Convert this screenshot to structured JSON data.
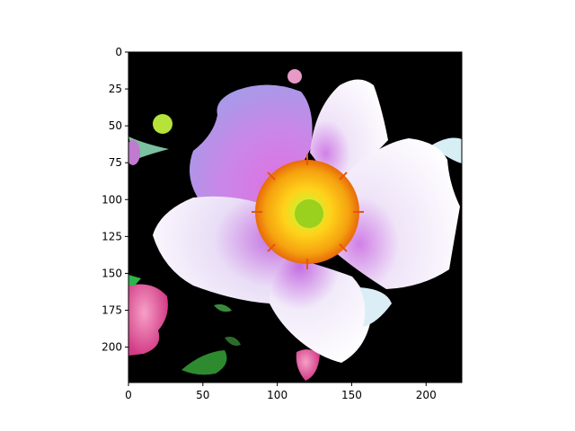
{
  "figure": {
    "background": "#ffffff",
    "image_subject": "flower-photo",
    "image_extent": {
      "x_min": 0,
      "x_max": 224,
      "y_min": 0,
      "y_max": 224
    }
  },
  "axes": {
    "x_ticks": [
      {
        "value": 0,
        "label": "0"
      },
      {
        "value": 50,
        "label": "50"
      },
      {
        "value": 100,
        "label": "100"
      },
      {
        "value": 150,
        "label": "150"
      },
      {
        "value": 200,
        "label": "200"
      }
    ],
    "y_ticks": [
      {
        "value": 0,
        "label": "0"
      },
      {
        "value": 25,
        "label": "25"
      },
      {
        "value": 50,
        "label": "50"
      },
      {
        "value": 75,
        "label": "75"
      },
      {
        "value": 100,
        "label": "100"
      },
      {
        "value": 125,
        "label": "125"
      },
      {
        "value": 150,
        "label": "150"
      },
      {
        "value": 175,
        "label": "175"
      },
      {
        "value": 200,
        "label": "200"
      }
    ]
  },
  "colors": {
    "image_background": "#000000",
    "petal_white": "#f6f2fb",
    "petal_purple": "#c07ae0",
    "petal_pink": "#d86ad8",
    "center_orange": "#f5a20f",
    "center_yellow": "#ffd21a",
    "center_green": "#9ad01e",
    "bud_pink": "#e0569a",
    "leaf_green": "#2e8a2e",
    "bud_yellow_green": "#b6e33a"
  }
}
